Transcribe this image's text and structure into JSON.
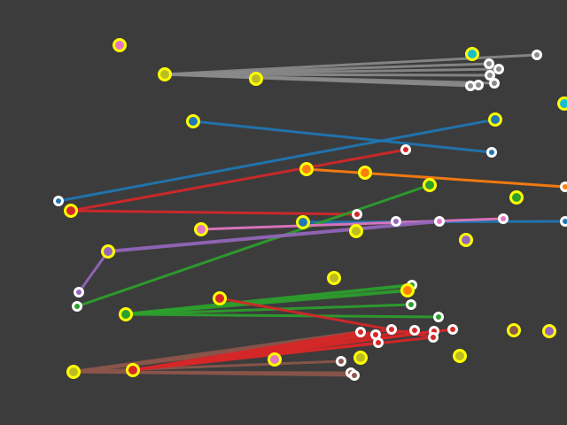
{
  "colors": {
    "background": "#3c3c3c",
    "node_ring_primary": "#ffff00",
    "node_ring_secondary": "#ffffff",
    "gray": "#8a8a8a",
    "blue": "#1f77b4",
    "red": "#d62728",
    "orange": "#ff7f0e",
    "green": "#2ca02c",
    "pink": "#e377c2",
    "purple": "#9467bd",
    "brown": "#8c564b",
    "cyan": "#17becf",
    "olive": "#bcbd22"
  }
}
